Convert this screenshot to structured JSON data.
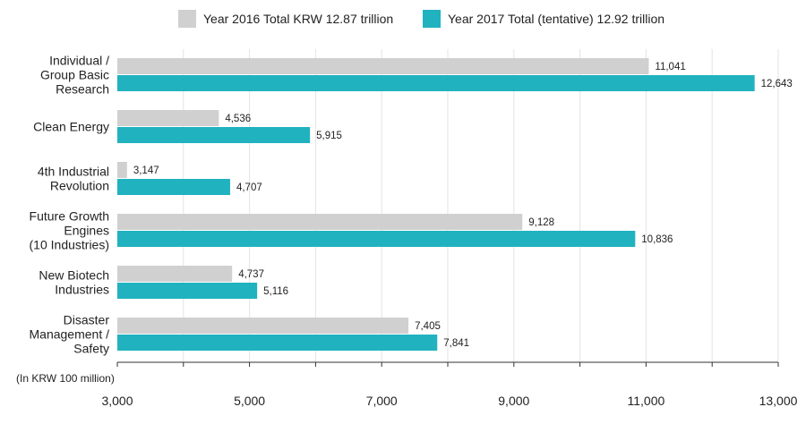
{
  "chart_data": {
    "type": "bar",
    "orientation": "horizontal",
    "categories": [
      [
        "Individual /",
        "Group Basic",
        "Research"
      ],
      [
        "Clean Energy"
      ],
      [
        "4th Industrial",
        "Revolution"
      ],
      [
        "Future Growth",
        "Engines",
        "(10 Industries)"
      ],
      [
        "New Biotech",
        "Industries"
      ],
      [
        "Disaster",
        "Management /",
        "Safety"
      ]
    ],
    "series": [
      {
        "name": "Year 2016 Total KRW 12.87 trillion",
        "color": "#d0d0d0",
        "values": [
          11041,
          4536,
          3147,
          9128,
          4737,
          7405
        ],
        "value_labels": [
          "11,041",
          "4,536",
          "3,147",
          "9,128",
          "4,737",
          "7,405"
        ]
      },
      {
        "name": "Year 2017 Total (tentative) 12.92 trillion",
        "color": "#20b2bf",
        "values": [
          12643,
          5915,
          4707,
          10836,
          5116,
          7841
        ],
        "value_labels": [
          "12,643",
          "5,915",
          "4,707",
          "10,836",
          "5,116",
          "7,841"
        ]
      }
    ],
    "xlim": [
      3000,
      13000
    ],
    "xticks": [
      3000,
      5000,
      7000,
      9000,
      11000,
      13000
    ],
    "xtick_labels": [
      "3,000",
      "5,000",
      "7,000",
      "9,000",
      "11,000",
      "13,000"
    ],
    "unit_label": "(In KRW 100 million)",
    "grid": "vertical",
    "legend_position": "top-center",
    "title": "",
    "xlabel": "",
    "ylabel": ""
  }
}
